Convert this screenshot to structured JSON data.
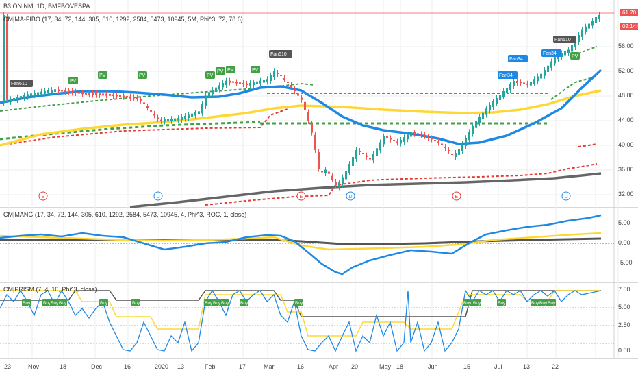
{
  "panel1": {
    "symbol": "B3 ON NM, 1D, BMFBOVESPA",
    "indicator": "CM|MA-FIBO (17, 34, 72, 144, 305, 610, 1292, 2584, 5473, 10945, 5M, Phi^3, 72, 78.6)",
    "price_tag": "61.70",
    "time_tag": "02:14:58",
    "yticks": [
      "56.00",
      "52.00",
      "48.00",
      "44.00",
      "40.00",
      "36.00",
      "32.00"
    ]
  },
  "panel2": {
    "indicator": "CM|MANG (17, 34, 72, 144, 305, 610, 1292, 2584, 5473, 10945, 4, Phi^3, ROC, 1, close)",
    "yticks": [
      "5.00",
      "0.00",
      "-5.00"
    ]
  },
  "panel3": {
    "indicator": "CM|PRISM (7, 4, 10, Phi^3, close)",
    "yticks": [
      "7.50",
      "5.00",
      "2.50",
      "0.00"
    ]
  },
  "xaxis": [
    "23",
    "Nov",
    "18",
    "Dec",
    "16",
    "2020",
    "13",
    "Feb",
    "17",
    "Mar",
    "16",
    "Apr",
    "20",
    "May",
    "18",
    "Jun",
    "15",
    "Jul",
    "13",
    "22"
  ],
  "annotations": {
    "fan_labels": [
      "Fan610",
      "Fan610",
      "Fan610",
      "Fan34",
      "Fan34",
      "Fan34"
    ],
    "pv_label": "PV",
    "buy_label": "Buy",
    "earnings_label": "E",
    "dividend_label": "D"
  },
  "colors": {
    "up": "#26a69a",
    "down": "#ef5350",
    "blue": "#2196f3",
    "yellow": "#ffeb3b",
    "green": "#4caf50",
    "red": "#e53935",
    "gray": "#616161"
  }
}
